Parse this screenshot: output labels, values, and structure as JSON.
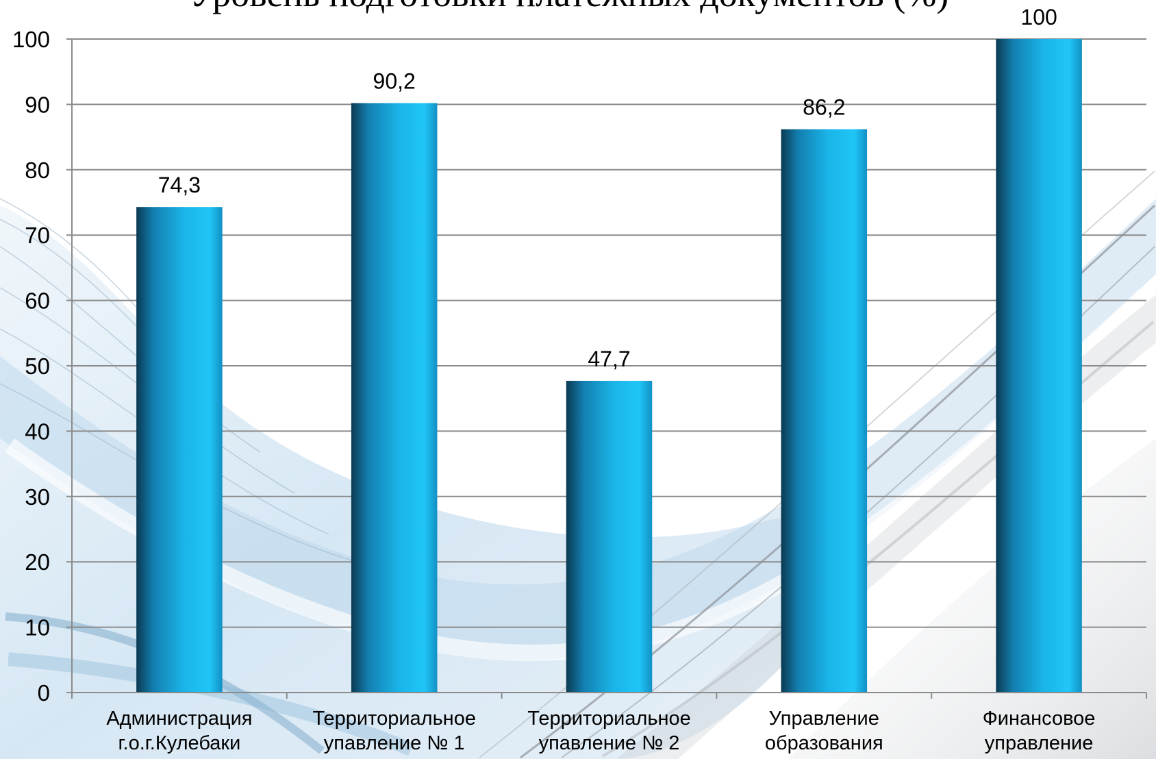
{
  "chart_data": {
    "type": "bar",
    "title": "Уровень подготовки платежных документов (%)",
    "categories": [
      "Администрация\nг.о.г.Кулебаки",
      "Территориальное\nупавление № 1",
      "Территориальное\nупавление № 2",
      "Управление\nобразования",
      "Финансовое\nуправление"
    ],
    "values": [
      74.3,
      90.2,
      47.7,
      86.2,
      100
    ],
    "value_labels": [
      "74,3",
      "90,2",
      "47,7",
      "86,2",
      "100"
    ],
    "ylim": [
      0,
      100
    ],
    "ytick_labels": [
      "0",
      "10",
      "20",
      "30",
      "40",
      "50",
      "60",
      "70",
      "80",
      "90",
      "100"
    ],
    "grid": true
  },
  "colors": {
    "bar_dark": "#0b3a52",
    "bar_mid": "#137fb0",
    "bar_light": "#1ab4e8",
    "bar_highlight": "#20c6f7",
    "bar_edge": "#1290c4",
    "gridline": "#8b8b8b",
    "background_wave": "#cfe3f2"
  }
}
